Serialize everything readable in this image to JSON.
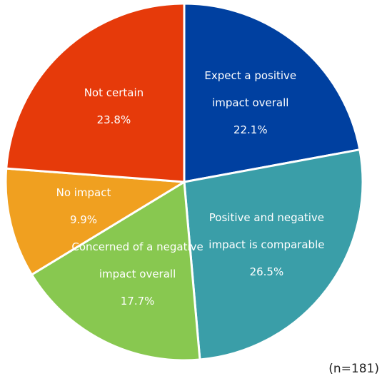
{
  "chart_data": {
    "type": "pie",
    "categories": [
      "Expect a positive impact overall",
      "Positive and negative impact is comparable",
      "Concerned of a negative impact overall",
      "No impact",
      "Not certain"
    ],
    "values": [
      22.1,
      26.5,
      17.7,
      9.9,
      23.8
    ],
    "value_labels": [
      "22.1%",
      "26.5%",
      "17.7%",
      "9.9%",
      "23.8%"
    ],
    "colors": [
      "#0040a0",
      "#3a9ea8",
      "#88c850",
      "#f0a020",
      "#e63a0a"
    ],
    "annotation": "(n=181)"
  }
}
